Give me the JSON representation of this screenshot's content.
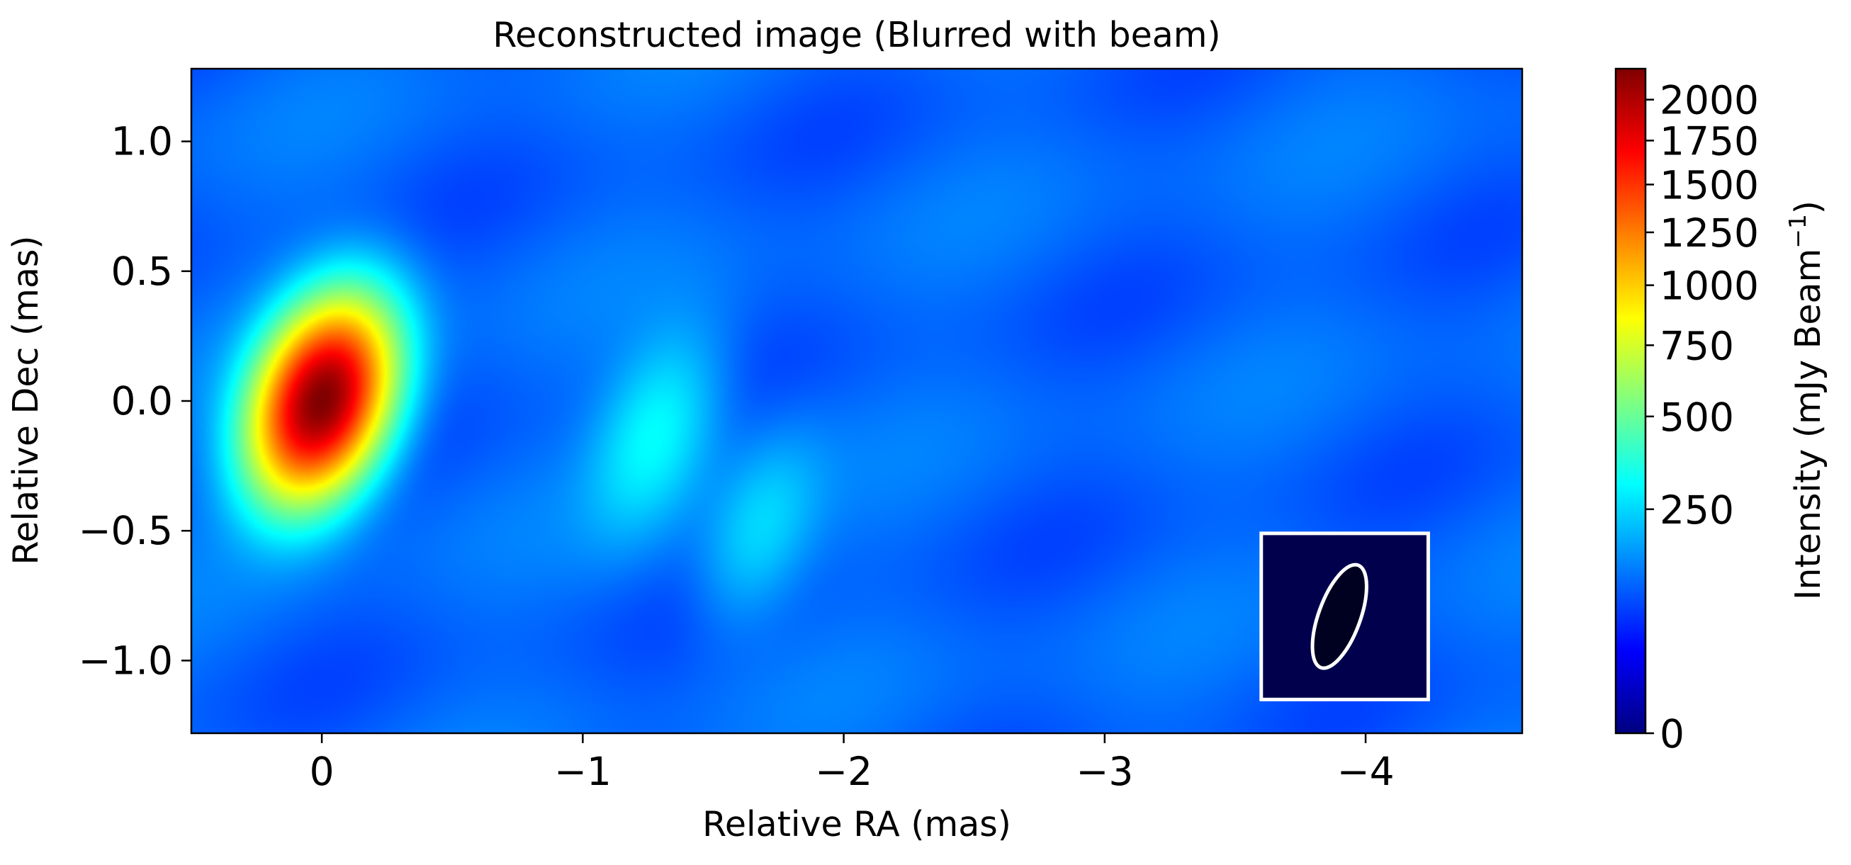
{
  "chart_data": {
    "type": "heatmap",
    "title": "Reconstructed image (Blurred with beam)",
    "xlabel": "Relative RA (mas)",
    "ylabel": "Relative Dec (mas)",
    "xlim": [
      0.5,
      -4.6
    ],
    "ylim": [
      -1.28,
      1.28
    ],
    "x_ticks": [
      {
        "value": 0,
        "label": "0"
      },
      {
        "value": -1,
        "label": "−1"
      },
      {
        "value": -2,
        "label": "−2"
      },
      {
        "value": -3,
        "label": "−3"
      },
      {
        "value": -4,
        "label": "−4"
      }
    ],
    "y_ticks": [
      {
        "value": 1.0,
        "label": "1.0"
      },
      {
        "value": 0.5,
        "label": "0.5"
      },
      {
        "value": 0.0,
        "label": "0.0"
      },
      {
        "value": -0.5,
        "label": "−0.5"
      },
      {
        "value": -1.0,
        "label": "−1.0"
      }
    ],
    "colormap": "jet",
    "colorbar": {
      "label_main": "Intensity (mJy Beam",
      "label_sup": "−1",
      "label_close": ")",
      "range": [
        0,
        2200
      ],
      "scale": "sqrt",
      "ticks": [
        {
          "value": 0,
          "label": "0"
        },
        {
          "value": 250,
          "label": "250"
        },
        {
          "value": 500,
          "label": "500"
        },
        {
          "value": 750,
          "label": "750"
        },
        {
          "value": 1000,
          "label": "1000"
        },
        {
          "value": 1250,
          "label": "1250"
        },
        {
          "value": 1500,
          "label": "1500"
        },
        {
          "value": 1750,
          "label": "1750"
        },
        {
          "value": 2000,
          "label": "2000"
        }
      ]
    },
    "components": [
      {
        "ra": 0.0,
        "dec": 0.0,
        "peak": 2150,
        "sigma_major": 0.24,
        "sigma_minor": 0.15,
        "pa_deg": 20
      },
      {
        "ra": -1.28,
        "dec": -0.12,
        "peak": 180,
        "sigma_major": 0.26,
        "sigma_minor": 0.14,
        "pa_deg": 20
      },
      {
        "ra": -1.68,
        "dec": -0.5,
        "peak": 120,
        "sigma_major": 0.24,
        "sigma_minor": 0.13,
        "pa_deg": 20
      }
    ],
    "background_level": 55,
    "beam": {
      "ra": -3.9,
      "dec": -0.83,
      "major_mas": 0.42,
      "minor_mas": 0.16,
      "pa_deg": 20,
      "box_ra": [
        -3.6,
        -4.24
      ],
      "box_dec": [
        -1.15,
        -0.51
      ]
    },
    "colors": {
      "beam_box_fill": "#00004d",
      "beam_ellipse_fill": "#000020",
      "beam_outline": "#ffffff",
      "axes": "#000000"
    }
  }
}
